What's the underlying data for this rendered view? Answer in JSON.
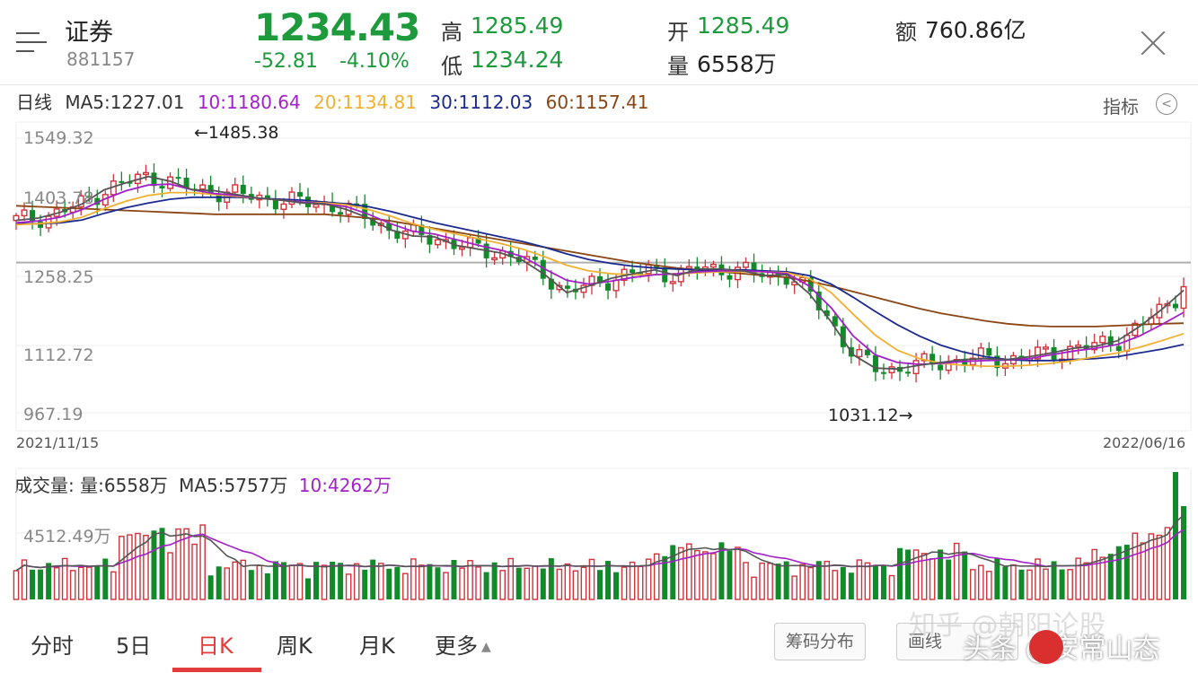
{
  "header": {
    "name": "证券",
    "code": "881157",
    "price": "1234.43",
    "change": "-52.81",
    "change_pct": "-4.10%",
    "high_label": "高",
    "high": "1285.49",
    "low_label": "低",
    "low": "1234.24",
    "open_label": "开",
    "open": "1285.49",
    "volume_label": "量",
    "volume": "6558万",
    "amount_label": "额",
    "amount": "760.86亿"
  },
  "ma_legend": {
    "period": "日线",
    "ma5": "MA5:1227.01",
    "ma10": "10:1180.64",
    "ma20": "20:1134.81",
    "ma30": "30:1112.03",
    "ma60": "60:1157.41"
  },
  "indicator_button": "指标",
  "chart_data": {
    "type": "candlestick",
    "y_ticks": [
      "1549.32",
      "1403.78",
      "1258.25",
      "1112.72",
      "967.19"
    ],
    "max_annotation": "←1485.38",
    "min_annotation": "1031.12→",
    "start_date": "2021/11/15",
    "end_date": "2022/06/16",
    "colors": {
      "up": "#d0333a",
      "down": "#138a2a",
      "ma5": "#555555",
      "ma10": "#a320c8",
      "ma20": "#f0b030",
      "ma30": "#1b2a8f",
      "ma60": "#8b4513",
      "ref": "#b0b0b0"
    },
    "ma5_pts": [
      1375,
      1380,
      1392,
      1410,
      1440,
      1455,
      1468,
      1458,
      1440,
      1438,
      1430,
      1422,
      1418,
      1412,
      1410,
      1398,
      1380,
      1355,
      1342,
      1340,
      1322,
      1314,
      1306,
      1290,
      1260,
      1222,
      1236,
      1252,
      1262,
      1270,
      1258,
      1272,
      1272,
      1268,
      1258,
      1260,
      1220,
      1160,
      1090,
      1062,
      1060,
      1068,
      1074,
      1080,
      1082,
      1080,
      1086,
      1094,
      1104,
      1108,
      1120,
      1150,
      1186,
      1227
    ],
    "ma10_pts": [
      1370,
      1374,
      1382,
      1398,
      1420,
      1438,
      1450,
      1452,
      1440,
      1432,
      1428,
      1422,
      1418,
      1414,
      1410,
      1404,
      1388,
      1368,
      1352,
      1346,
      1334,
      1322,
      1312,
      1298,
      1272,
      1248,
      1240,
      1246,
      1254,
      1260,
      1262,
      1266,
      1268,
      1268,
      1266,
      1262,
      1236,
      1190,
      1130,
      1090,
      1074,
      1070,
      1072,
      1076,
      1078,
      1079,
      1082,
      1090,
      1098,
      1104,
      1112,
      1130,
      1154,
      1180
    ],
    "ma20_pts": [
      1366,
      1368,
      1372,
      1382,
      1400,
      1416,
      1428,
      1434,
      1434,
      1430,
      1426,
      1422,
      1418,
      1414,
      1412,
      1408,
      1398,
      1384,
      1368,
      1356,
      1346,
      1336,
      1326,
      1314,
      1298,
      1280,
      1268,
      1262,
      1260,
      1260,
      1262,
      1264,
      1266,
      1266,
      1266,
      1264,
      1252,
      1222,
      1176,
      1132,
      1100,
      1082,
      1072,
      1068,
      1066,
      1066,
      1068,
      1072,
      1078,
      1086,
      1094,
      1106,
      1120,
      1135
    ],
    "ma30_pts": [
      1368,
      1368,
      1370,
      1376,
      1390,
      1402,
      1412,
      1420,
      1424,
      1424,
      1424,
      1422,
      1420,
      1418,
      1414,
      1410,
      1404,
      1394,
      1382,
      1370,
      1360,
      1350,
      1340,
      1330,
      1318,
      1304,
      1292,
      1284,
      1278,
      1274,
      1272,
      1270,
      1270,
      1270,
      1268,
      1266,
      1258,
      1240,
      1212,
      1182,
      1154,
      1130,
      1110,
      1096,
      1086,
      1080,
      1078,
      1078,
      1080,
      1082,
      1086,
      1094,
      1102,
      1112
    ],
    "ma60_pts": [
      1406,
      1404,
      1402,
      1400,
      1398,
      1396,
      1394,
      1392,
      1390,
      1388,
      1388,
      1388,
      1388,
      1388,
      1388,
      1384,
      1380,
      1374,
      1366,
      1358,
      1350,
      1342,
      1334,
      1326,
      1318,
      1310,
      1302,
      1294,
      1286,
      1280,
      1274,
      1270,
      1266,
      1262,
      1258,
      1254,
      1246,
      1236,
      1224,
      1212,
      1200,
      1188,
      1178,
      1170,
      1162,
      1156,
      1152,
      1150,
      1150,
      1150,
      1152,
      1154,
      1156,
      1157
    ],
    "ref_price": 1285.49
  },
  "volume": {
    "label": "成交量:",
    "vol": "量:6558万",
    "ma5": "MA5:5757万",
    "ma10": "10:4262万",
    "tick": "4512.49万"
  },
  "tabs": [
    "分时",
    "5日",
    "日K",
    "周K",
    "月K",
    "更多"
  ],
  "tab_more_arrow": "▲",
  "buttons": {
    "chip": "筹码分布",
    "draw": "画线"
  },
  "watermark": {
    "zhihu": "知乎 @朝阳论股",
    "toutiao": "头条 @安常山态"
  }
}
